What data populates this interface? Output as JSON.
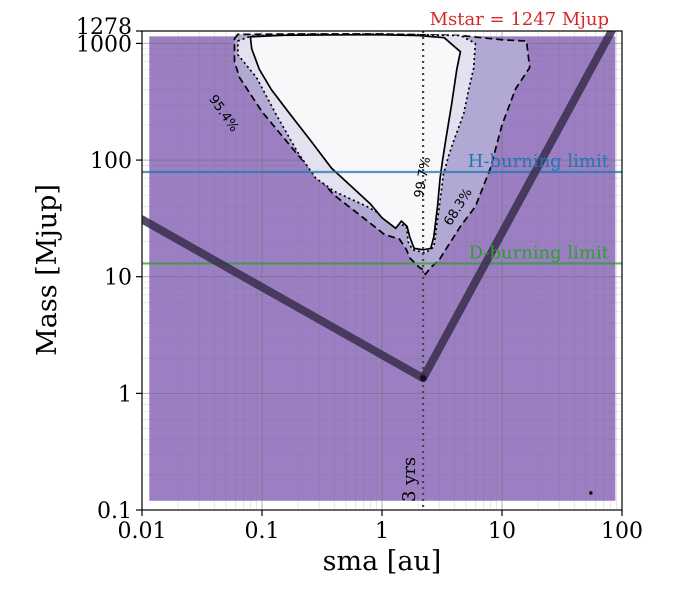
{
  "chart_data": {
    "type": "contour",
    "title": "Mstar = 1247 Mjup",
    "xlabel": "sma [au]",
    "ylabel": "Mass [Mjup]",
    "xscale": "log",
    "yscale": "log",
    "xlim": [
      0.01,
      100
    ],
    "ylim": [
      0.1,
      1278
    ],
    "grid": true,
    "x_ticks": [
      {
        "value": 0.01,
        "label": "0.01"
      },
      {
        "value": 0.1,
        "label": "0.1"
      },
      {
        "value": 1,
        "label": "1"
      },
      {
        "value": 10,
        "label": "10"
      },
      {
        "value": 100,
        "label": "100"
      }
    ],
    "y_ticks": [
      {
        "value": 0.1,
        "label": "0.1"
      },
      {
        "value": 1,
        "label": "1"
      },
      {
        "value": 10,
        "label": "10"
      },
      {
        "value": 100,
        "label": "100"
      },
      {
        "value": 1000,
        "label": "1000"
      },
      {
        "value": 1278,
        "label": "1278"
      }
    ],
    "reference_lines": [
      {
        "orientation": "horizontal",
        "value": 79,
        "label": "H-burning limit",
        "color": "#1f77b4"
      },
      {
        "orientation": "horizontal",
        "value": 13,
        "label": "D-burning limit",
        "color": "#2ca02c"
      }
    ],
    "vertical_marker": {
      "value": 2.2,
      "label": "3 yrs"
    },
    "contours": [
      {
        "label": "68.3%",
        "style": "dashed",
        "fill": "#b2a8d4",
        "points": [
          [
            0.059,
            1098
          ],
          [
            0.063,
            1196
          ],
          [
            0.2,
            1205
          ],
          [
            1,
            1205
          ],
          [
            4.5,
            1170
          ],
          [
            10.5,
            1070
          ],
          [
            16,
            1050
          ],
          [
            17,
            620
          ],
          [
            13,
            410
          ],
          [
            10,
            200
          ],
          [
            8,
            85
          ],
          [
            6,
            40
          ],
          [
            4.5,
            27
          ],
          [
            3,
            14
          ],
          [
            2.55,
            12
          ],
          [
            2.3,
            10.5
          ],
          [
            2.2,
            11.5
          ],
          [
            2.05,
            12
          ],
          [
            1.7,
            14.5
          ],
          [
            1.6,
            17
          ],
          [
            1.4,
            21
          ],
          [
            1.05,
            23
          ],
          [
            0.7,
            32
          ],
          [
            0.4,
            50
          ],
          [
            0.2,
            110
          ],
          [
            0.1,
            260
          ],
          [
            0.065,
            510
          ],
          [
            0.059,
            700
          ]
        ]
      },
      {
        "label": "95.4%",
        "style": "dotted",
        "fill": "#e3e0ef",
        "points": [
          [
            0.063,
            1050
          ],
          [
            0.08,
            1150
          ],
          [
            0.2,
            1195
          ],
          [
            1,
            1200
          ],
          [
            4.5,
            1170
          ],
          [
            6,
            1000
          ],
          [
            5.8,
            610
          ],
          [
            5.3,
            410
          ],
          [
            4.8,
            250
          ],
          [
            4,
            150
          ],
          [
            3.6,
            110
          ],
          [
            3.25,
            75
          ],
          [
            3,
            40
          ],
          [
            2.7,
            18
          ],
          [
            2.3,
            16
          ],
          [
            1.8,
            17
          ],
          [
            1.65,
            20
          ],
          [
            1.6,
            27
          ],
          [
            1.3,
            29
          ],
          [
            0.75,
            40
          ],
          [
            0.4,
            54
          ],
          [
            0.28,
            70
          ],
          [
            0.2,
            115
          ],
          [
            0.13,
            250
          ],
          [
            0.09,
            510
          ],
          [
            0.063,
            800
          ]
        ]
      },
      {
        "label": "99.7%",
        "style": "solid",
        "fill": "#f8f8fb",
        "points": [
          [
            0.08,
            1140
          ],
          [
            0.15,
            1175
          ],
          [
            0.5,
            1185
          ],
          [
            1,
            1185
          ],
          [
            2,
            1170
          ],
          [
            3.3,
            1120
          ],
          [
            4.5,
            850
          ],
          [
            4.2,
            600
          ],
          [
            3.8,
            300
          ],
          [
            3.4,
            150
          ],
          [
            3.2,
            100
          ],
          [
            3.05,
            70
          ],
          [
            2.9,
            40
          ],
          [
            2.7,
            22
          ],
          [
            2.55,
            17.5
          ],
          [
            2.2,
            17
          ],
          [
            1.85,
            17.5
          ],
          [
            1.7,
            22
          ],
          [
            1.62,
            27
          ],
          [
            1.45,
            30
          ],
          [
            1.3,
            26
          ],
          [
            1.0,
            32
          ],
          [
            0.8,
            42
          ],
          [
            0.55,
            60
          ],
          [
            0.38,
            85
          ],
          [
            0.25,
            150
          ],
          [
            0.17,
            250
          ],
          [
            0.12,
            400
          ],
          [
            0.095,
            600
          ],
          [
            0.082,
            900
          ]
        ]
      }
    ],
    "constraint_lines": [
      {
        "points": [
          [
            0.01,
            31
          ],
          [
            2.2,
            1.35
          ]
        ]
      },
      {
        "points": [
          [
            2.2,
            1.35
          ],
          [
            82,
            1278
          ]
        ]
      }
    ],
    "marker_points": [
      {
        "x": 2.2,
        "y": 1.35
      },
      {
        "x": 55,
        "y": 0.14
      }
    ],
    "colors": {
      "background_region": "#9c7fc2",
      "constraint_line": "#3a2e4e"
    }
  }
}
